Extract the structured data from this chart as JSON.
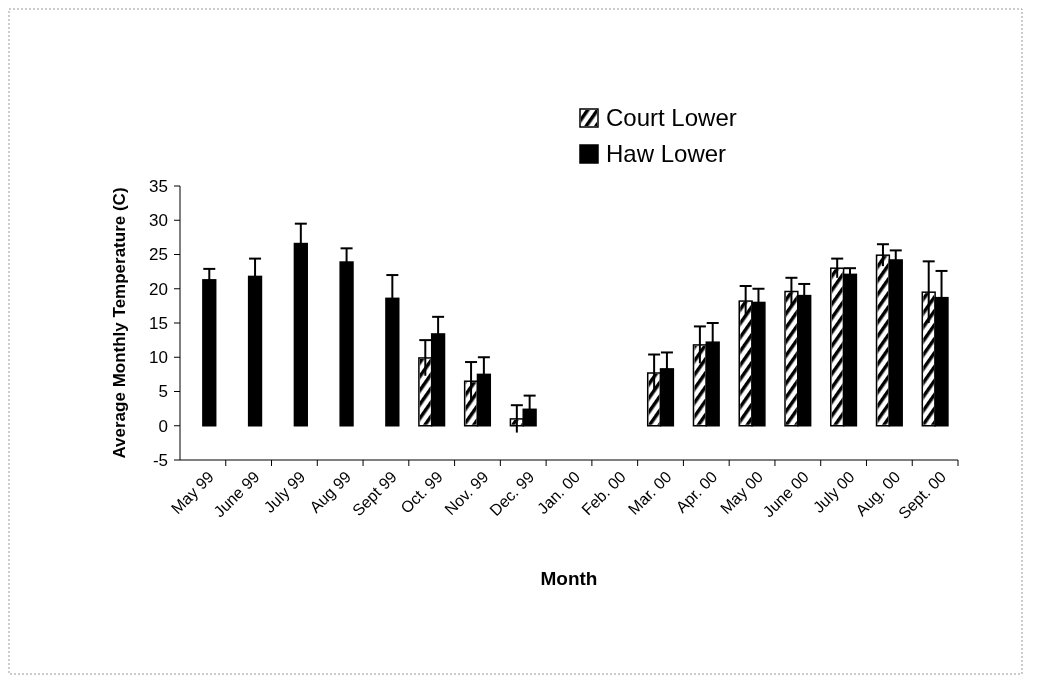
{
  "chart_data": {
    "type": "bar",
    "xlabel": "Month",
    "ylabel": "Average Monthly Temperature (C)",
    "categories": [
      "May 99",
      "June 99",
      "July 99",
      "Aug 99",
      "Sept 99",
      "Oct. 99",
      "Nov. 99",
      "Dec. 99",
      "Jan. 00",
      "Feb. 00",
      "Mar. 00",
      "Apr. 00",
      "May 00",
      "June 00",
      "July 00",
      "Aug. 00",
      "Sept. 00"
    ],
    "series": [
      {
        "name": "Court Lower",
        "color": "#ffffff",
        "values": [
          null,
          null,
          null,
          null,
          null,
          9.9,
          6.5,
          1.0,
          null,
          null,
          7.7,
          11.8,
          18.2,
          19.6,
          23.0,
          24.9,
          19.5
        ],
        "errors": [
          null,
          null,
          null,
          null,
          null,
          2.6,
          2.8,
          2.0,
          null,
          null,
          2.7,
          2.7,
          2.2,
          2.0,
          1.4,
          1.6,
          4.5
        ]
      },
      {
        "name": "Haw Lower",
        "color": "#000000",
        "values": [
          21.3,
          21.8,
          26.6,
          23.9,
          18.6,
          13.4,
          7.5,
          2.4,
          null,
          null,
          8.3,
          12.2,
          18.0,
          19.0,
          22.1,
          24.2,
          18.7
        ],
        "errors": [
          1.6,
          2.6,
          2.9,
          2.0,
          3.4,
          2.5,
          2.5,
          2.0,
          null,
          null,
          2.4,
          2.8,
          2.0,
          1.7,
          0.9,
          1.4,
          3.9
        ]
      }
    ],
    "ylim": [
      -5,
      35
    ],
    "yticks": [
      -5,
      0,
      5,
      10,
      15,
      20,
      25,
      30,
      35
    ],
    "legend": "top",
    "grid": false
  }
}
